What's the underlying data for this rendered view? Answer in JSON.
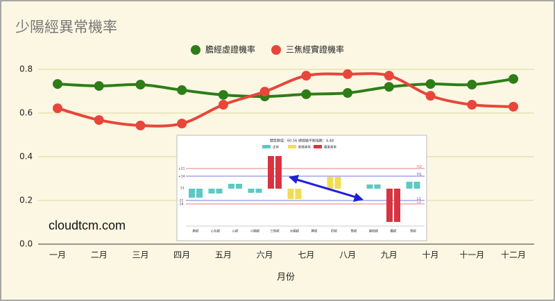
{
  "chart_data": {
    "type": "line",
    "title": "少陽經異常機率",
    "xlabel": "月份",
    "categories": [
      "一月",
      "二月",
      "三月",
      "四月",
      "五月",
      "六月",
      "七月",
      "八月",
      "九月",
      "十月",
      "十一月",
      "十二月"
    ],
    "series": [
      {
        "name": "膽經虛證機率",
        "color": "#2e7d18",
        "values": [
          0.733,
          0.724,
          0.73,
          0.705,
          0.683,
          0.676,
          0.686,
          0.692,
          0.72,
          0.733,
          0.73,
          0.756
        ]
      },
      {
        "name": "三焦經實證機率",
        "color": "#e8463a",
        "values": [
          0.622,
          0.568,
          0.543,
          0.552,
          0.638,
          0.698,
          0.771,
          0.778,
          0.771,
          0.679,
          0.638,
          0.629
        ]
      }
    ],
    "ylim": [
      0,
      0.8
    ],
    "yticks": [
      {
        "value": 0,
        "label": "0.0"
      },
      0.2,
      0.4,
      0.6,
      0.8
    ],
    "grid": true,
    "legend": "top"
  },
  "watermark": "cloudtcm.com",
  "inset": {
    "title": "體質數值：60.56 總經絡平衡指數：4.48",
    "legend": [
      "正常",
      "輕微異常",
      "嚴重異常"
    ],
    "y_labels": [
      "+21",
      "+14",
      "51",
      "-11",
      "-16"
    ],
    "level_labels": [
      "H2",
      "H1",
      "L1",
      "L2"
    ],
    "categories": [
      "肺經",
      "心包經",
      "心經",
      "小腸經",
      "三焦經",
      "大腸經",
      "脾經",
      "肝經",
      "腎經",
      "膀胱經",
      "膽經",
      "胃經"
    ]
  }
}
